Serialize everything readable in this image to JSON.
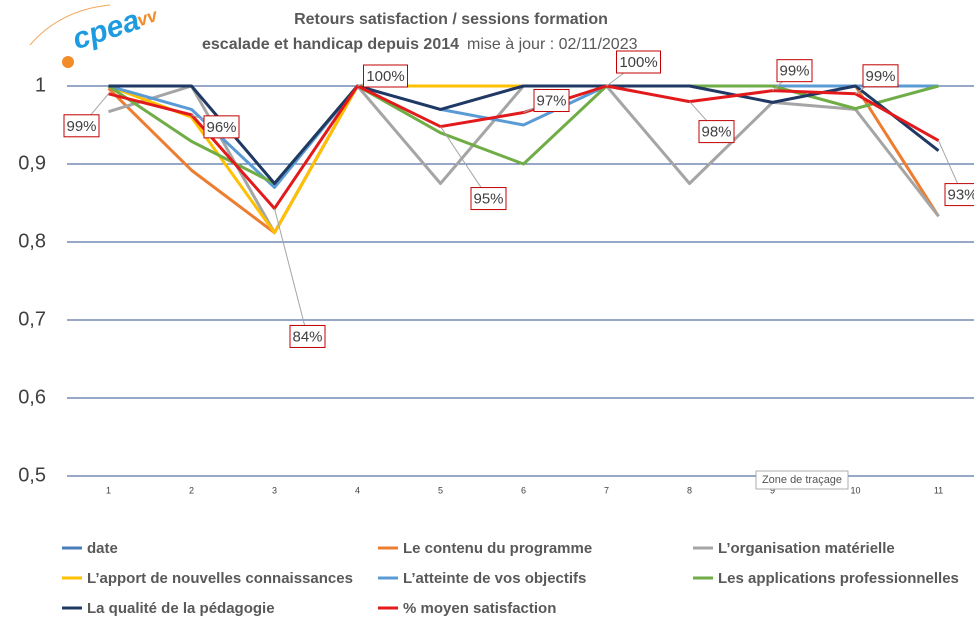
{
  "chart_data": {
    "type": "line",
    "title": "Retours satisfaction / sessions formation",
    "subtitle": "escalade et handicap depuis 2014",
    "update_note": "mise à jour : 02/11/2023",
    "logo": [
      "cpea",
      "vv"
    ],
    "tooltip": "Zone de traçage",
    "categories": [
      "1",
      "2",
      "3",
      "4",
      "5",
      "6",
      "7",
      "8",
      "9",
      "10",
      "11"
    ],
    "ylim": [
      0.5,
      1
    ],
    "yticks": [
      {
        "value": 0.5,
        "label": "0,5"
      },
      {
        "value": 0.6,
        "label": "0,6"
      },
      {
        "value": 0.7,
        "label": "0,7"
      },
      {
        "value": 0.8,
        "label": "0,8"
      },
      {
        "value": 0.9,
        "label": "0,9"
      },
      1
    ],
    "grid": true,
    "legend": "bottom",
    "series": [
      {
        "name": "date",
        "color": "#4a7ebb",
        "values": [
          null,
          null,
          null,
          null,
          null,
          null,
          null,
          null,
          null,
          null,
          null
        ]
      },
      {
        "name": "Le contenu du programme",
        "color": "#ed7d31",
        "values": [
          0.997,
          0.892,
          0.812,
          1,
          1,
          1,
          1,
          1,
          1,
          1,
          0.833
        ]
      },
      {
        "name": "L’organisation matérielle",
        "color": "#a5a5a5",
        "values": [
          0.967,
          1,
          0.812,
          1,
          0.875,
          1,
          1,
          0.875,
          0.979,
          0.97,
          0.833
        ]
      },
      {
        "name": "L’apport de nouvelles connaissances",
        "color": "#ffc000",
        "values": [
          1,
          0.96,
          0.812,
          1,
          1,
          1,
          1,
          1,
          1,
          1,
          1
        ]
      },
      {
        "name": "L’atteinte de vos objectifs",
        "color": "#5b9bd5",
        "values": [
          1,
          0.97,
          0.87,
          1,
          0.97,
          0.95,
          1,
          1,
          1,
          1,
          1
        ]
      },
      {
        "name": "Les applications professionnelles",
        "color": "#70ad47",
        "values": [
          1,
          0.929,
          0.875,
          1,
          0.94,
          0.9,
          1,
          1,
          1,
          0.971,
          1
        ]
      },
      {
        "name": "La qualité de la pédagogie",
        "color": "#1f3864",
        "values": [
          1,
          1,
          0.875,
          1,
          0.97,
          1,
          1,
          1,
          0.979,
          1,
          0.917
        ]
      },
      {
        "name": "% moyen satisfaction",
        "color": "#e31a1c",
        "values": [
          0.99,
          0.963,
          0.843,
          1,
          0.948,
          0.966,
          1,
          0.98,
          0.994,
          0.99,
          0.93
        ],
        "value_labels": [
          "99%",
          "96%",
          "84%",
          "100%",
          "95%",
          "97%",
          "100%",
          "98%",
          "99%",
          "99%",
          "93%"
        ]
      }
    ]
  }
}
